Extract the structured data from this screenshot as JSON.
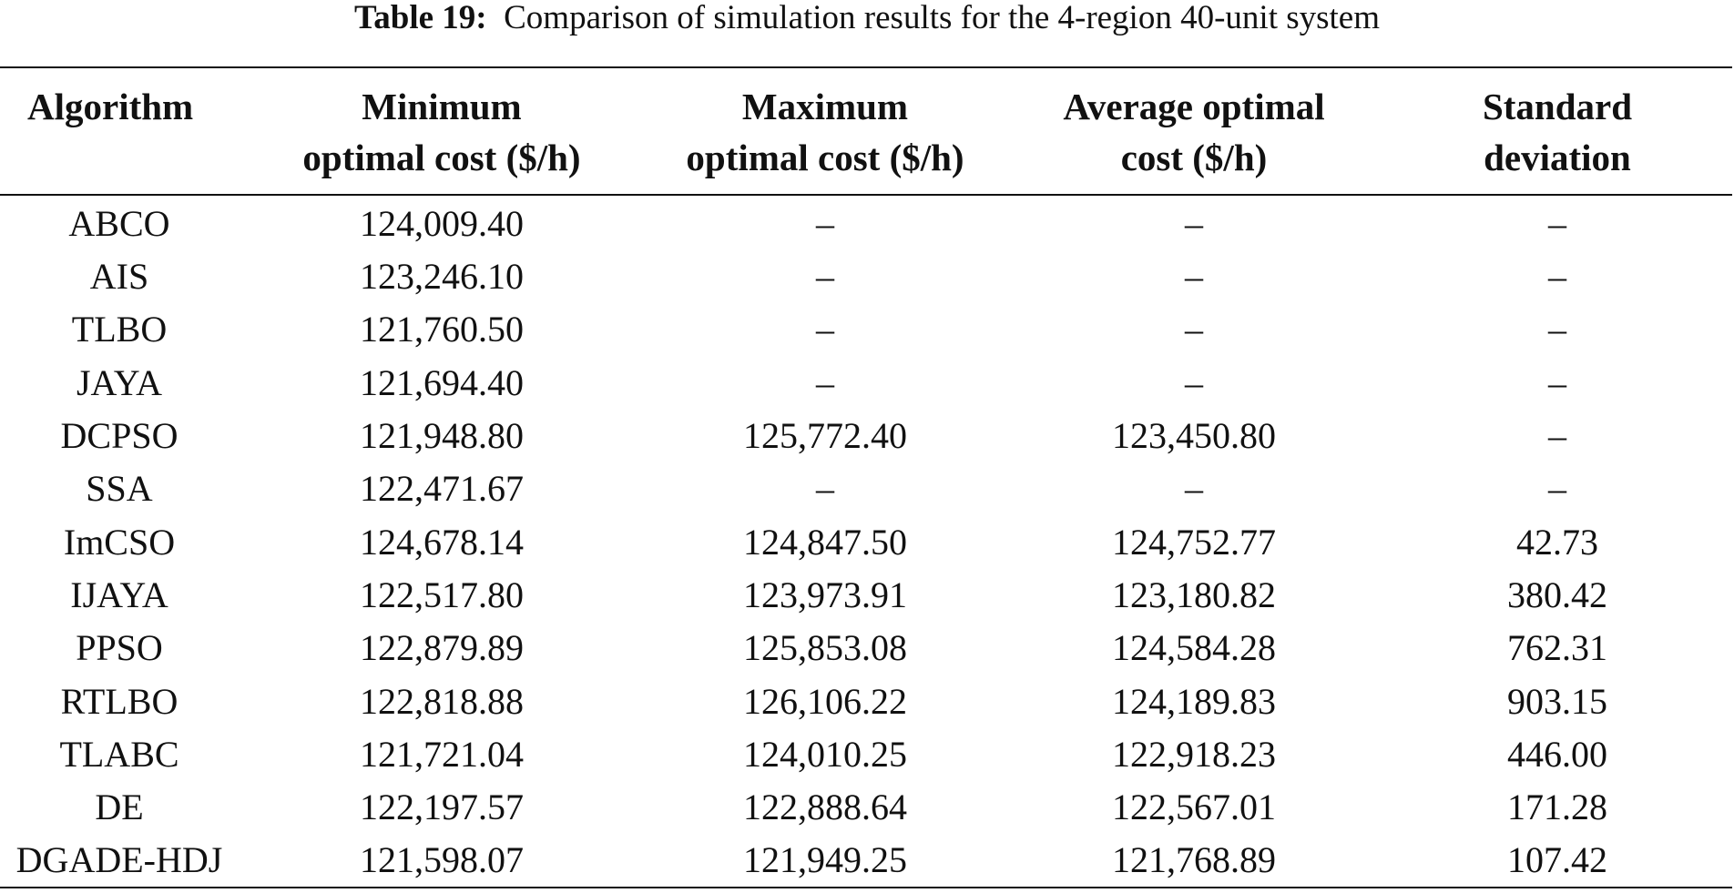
{
  "caption": {
    "label": "Table 19:",
    "text": "Comparison of simulation results for the 4-region 40-unit system"
  },
  "table": {
    "headers": [
      "Algorithm",
      "Minimum\noptimal cost ($/h)",
      "Maximum\noptimal cost ($/h)",
      "Average optimal\ncost ($/h)",
      "Standard\ndeviation"
    ],
    "rows": [
      [
        "ABCO",
        "124,009.40",
        "–",
        "–",
        "–"
      ],
      [
        "AIS",
        "123,246.10",
        "–",
        "–",
        "–"
      ],
      [
        "TLBO",
        "121,760.50",
        "–",
        "–",
        "–"
      ],
      [
        "JAYA",
        "121,694.40",
        "–",
        "–",
        "–"
      ],
      [
        "DCPSO",
        "121,948.80",
        "125,772.40",
        "123,450.80",
        "–"
      ],
      [
        "SSA",
        "122,471.67",
        "–",
        "–",
        "–"
      ],
      [
        "ImCSO",
        "124,678.14",
        "124,847.50",
        "124,752.77",
        "42.73"
      ],
      [
        "IJAYA",
        "122,517.80",
        "123,973.91",
        "123,180.82",
        "380.42"
      ],
      [
        "PPSO",
        "122,879.89",
        "125,853.08",
        "124,584.28",
        "762.31"
      ],
      [
        "RTLBO",
        "122,818.88",
        "126,106.22",
        "124,189.83",
        "903.15"
      ],
      [
        "TLABC",
        "121,721.04",
        "124,010.25",
        "122,918.23",
        "446.00"
      ],
      [
        "DE",
        "122,197.57",
        "122,888.64",
        "122,567.01",
        "171.28"
      ],
      [
        "DGADE-HDJ",
        "121,598.07",
        "121,949.25",
        "121,768.89",
        "107.42"
      ]
    ]
  }
}
